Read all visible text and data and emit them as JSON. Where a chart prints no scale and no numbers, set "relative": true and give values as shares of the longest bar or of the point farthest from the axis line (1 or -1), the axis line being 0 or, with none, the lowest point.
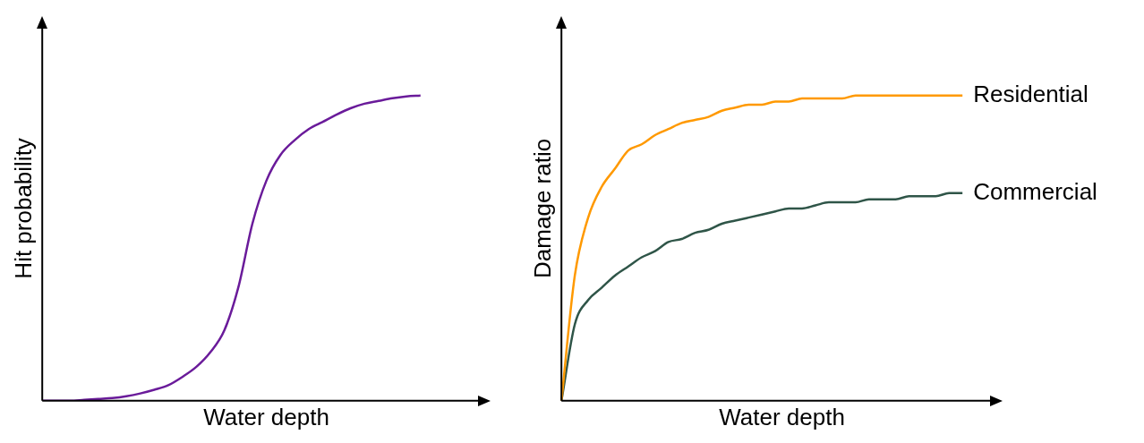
{
  "chart_data": [
    {
      "type": "line",
      "relative": true,
      "ylabel": "Hit probability",
      "xlabel": "Water depth",
      "legend": false,
      "grid": false,
      "categories": [
        null,
        null,
        null,
        null,
        null,
        null,
        null,
        null,
        null,
        null,
        null,
        null,
        null,
        null,
        null,
        null,
        null,
        null,
        null,
        null,
        null,
        null,
        null,
        null,
        null,
        null,
        null,
        null,
        null,
        null,
        null,
        null,
        null
      ],
      "series": [
        {
          "color": "#6a1b9a",
          "values": [
            0,
            0,
            0,
            0.003,
            0.006,
            0.009,
            0.015,
            0.024,
            0.036,
            0.051,
            0.078,
            0.111,
            0.159,
            0.231,
            0.372,
            0.58,
            0.721,
            0.805,
            0.853,
            0.889,
            0.913,
            0.937,
            0.958,
            0.973,
            0.982,
            0.991,
            0.997,
            1,
            null,
            null,
            null,
            null,
            null
          ]
        }
      ]
    },
    {
      "type": "line",
      "relative": true,
      "ylabel": "Damage ratio",
      "xlabel": "Water depth",
      "legend": false,
      "grid": false,
      "categories": [
        null,
        null,
        null,
        null,
        null,
        null,
        null,
        null,
        null,
        null,
        null,
        null,
        null,
        null,
        null,
        null,
        null,
        null,
        null,
        null,
        null,
        null,
        null,
        null,
        null,
        null,
        null,
        null,
        null,
        null,
        null,
        null,
        null,
        null
      ],
      "series": [
        {
          "name": "Residential",
          "color": "#ff9900",
          "values": [
            0,
            0.41,
            0.6,
            0.7,
            0.76,
            0.82,
            0.84,
            0.87,
            0.89,
            0.91,
            0.92,
            0.93,
            0.95,
            0.96,
            0.97,
            0.97,
            0.98,
            0.98,
            0.99,
            0.99,
            0.99,
            0.99,
            1,
            1,
            1,
            1,
            1,
            1,
            1,
            1,
            1,
            null,
            null,
            null
          ]
        },
        {
          "name": "Commercial",
          "color": "#2f5548",
          "values": [
            0,
            0.25,
            0.33,
            0.37,
            0.41,
            0.44,
            0.47,
            0.49,
            0.52,
            0.53,
            0.55,
            0.56,
            0.58,
            0.59,
            0.6,
            0.61,
            0.62,
            0.63,
            0.63,
            0.64,
            0.65,
            0.65,
            0.65,
            0.66,
            0.66,
            0.66,
            0.67,
            0.67,
            0.67,
            0.68,
            0.68,
            null,
            null,
            null
          ]
        }
      ]
    }
  ]
}
